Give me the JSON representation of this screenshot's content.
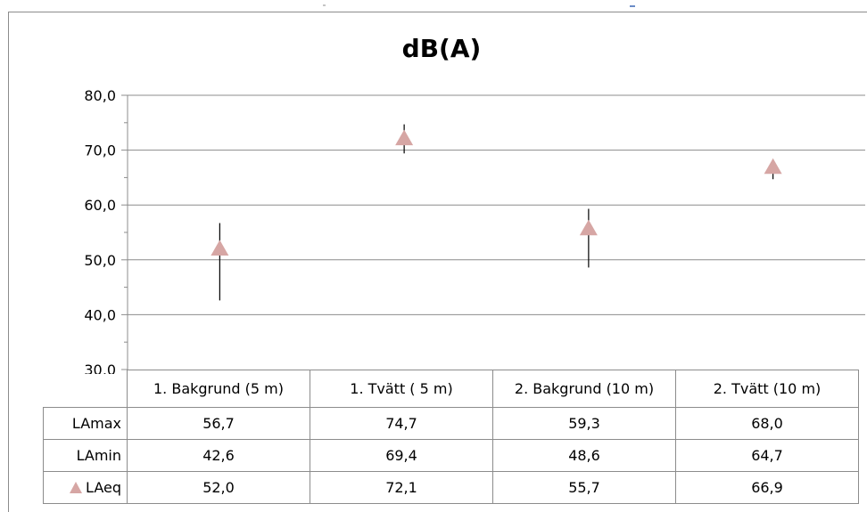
{
  "chart_data": {
    "type": "scatter",
    "title": "dB(A)",
    "ylim": [
      30,
      80
    ],
    "ytick_labels": [
      "80,0",
      "70,0",
      "60,0",
      "50,0",
      "40,0",
      "30,0"
    ],
    "ytick_values": [
      80,
      70,
      60,
      50,
      40,
      30
    ],
    "grid": true,
    "marker_color": "#d6a6a4",
    "line_color": "#000000",
    "categories": [
      "1. Bakgrund (5 m)",
      "1. Tvätt ( 5 m)",
      "2. Bakgrund (10 m)",
      "2. Tvätt (10 m)"
    ],
    "series": [
      {
        "name": "LAmax",
        "values": [
          56.7,
          74.7,
          59.3,
          68.0
        ],
        "labels": [
          "56,7",
          "74,7",
          "59,3",
          "68,0"
        ]
      },
      {
        "name": "LAmin",
        "values": [
          42.6,
          69.4,
          48.6,
          64.7
        ],
        "labels": [
          "42,6",
          "69,4",
          "48,6",
          "64,7"
        ]
      },
      {
        "name": "LAeq",
        "values": [
          52.0,
          72.1,
          55.7,
          66.9
        ],
        "labels": [
          "52,0",
          "72,1",
          "55,7",
          "66,9"
        ]
      }
    ],
    "legend": "in-table"
  }
}
